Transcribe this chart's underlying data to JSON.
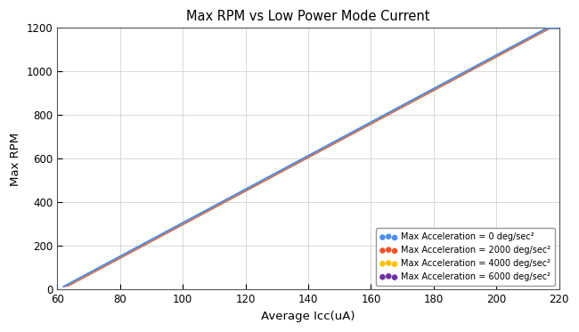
{
  "title": "Max RPM vs Low Power Mode Current",
  "xlabel": "Average Icc(uA)",
  "ylabel": "Max RPM",
  "xlim": [
    60,
    220
  ],
  "ylim": [
    0,
    1200
  ],
  "xticks": [
    60,
    80,
    100,
    120,
    140,
    160,
    180,
    200,
    220
  ],
  "yticks": [
    0,
    200,
    400,
    600,
    800,
    1000,
    1200
  ],
  "background_color": "#ffffff",
  "grid_color": "#d3d3d3",
  "series": [
    {
      "label": "Max Acceleration = 0 deg/sec²",
      "color": "#4f8fef",
      "slope": 7.692,
      "intercept": -462.5,
      "x_start": 62.0,
      "x_end": 220,
      "zorder": 4
    },
    {
      "label": "Max Acceleration = 2000 deg/sec²",
      "color": "#f4522d",
      "slope": 7.692,
      "intercept": -465.0,
      "x_start": 62.5,
      "x_end": 220,
      "zorder": 3
    },
    {
      "label": "Max Acceleration = 4000 deg/sec²",
      "color": "#ffc000",
      "slope": 7.692,
      "intercept": -467.5,
      "x_start": 63.0,
      "x_end": 220,
      "zorder": 2
    },
    {
      "label": "Max Acceleration = 6000 deg/sec²",
      "color": "#7030a0",
      "slope": 7.692,
      "intercept": -470.0,
      "x_start": 63.5,
      "x_end": 220,
      "zorder": 1
    }
  ],
  "n_points": 400,
  "marker_size": 2.5,
  "legend_loc": "lower right",
  "title_fontsize": 10.5,
  "label_fontsize": 9.5,
  "tick_fontsize": 8.5
}
